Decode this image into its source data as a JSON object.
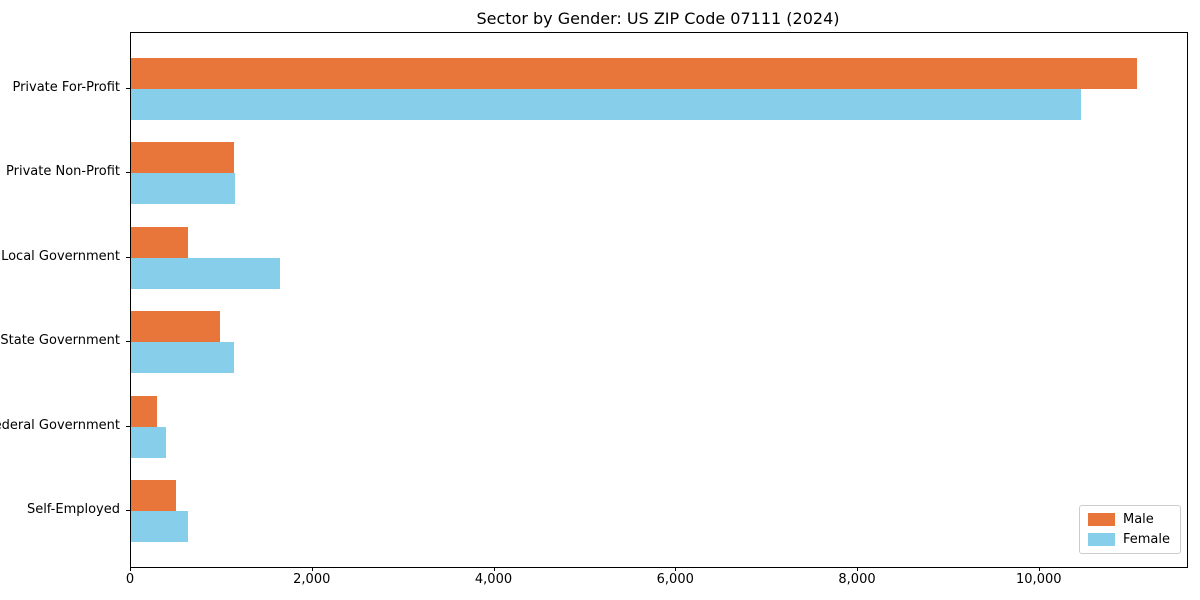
{
  "chart_data": {
    "type": "bar",
    "orientation": "horizontal",
    "title": "Sector by Gender: US ZIP Code 07111 (2024)",
    "categories": [
      "Private For-Profit",
      "Private Non-Profit",
      "Local Government",
      "State Government",
      "Federal Government",
      "Self-Employed"
    ],
    "series": [
      {
        "name": "Male",
        "color": "#e8763a",
        "values": [
          11070,
          1130,
          630,
          980,
          290,
          495
        ]
      },
      {
        "name": "Female",
        "color": "#87ceeb",
        "values": [
          10450,
          1140,
          1640,
          1130,
          385,
          630
        ]
      }
    ],
    "xlim": [
      0,
      11620
    ],
    "xticks": [
      0,
      2000,
      4000,
      6000,
      8000,
      10000
    ],
    "xtick_labels": [
      "0",
      "2,000",
      "4,000",
      "6,000",
      "8,000",
      "10,000"
    ],
    "xlabel": "",
    "ylabel": "",
    "grid": false,
    "legend_position": "lower right",
    "background": "#ffffff",
    "spine_color": "#000000"
  }
}
